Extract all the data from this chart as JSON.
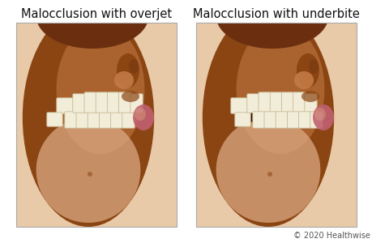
{
  "title_left": "Malocclusion with overjet",
  "title_right": "Malocclusion with underbite",
  "copyright": "© 2020 Healthwise",
  "bg_color": "#ffffff",
  "title_fontsize": 10.5,
  "copyright_fontsize": 7,
  "box_linecolor": "#aaaaaa",
  "skin_dark": "#6b2f10",
  "skin_mid": "#8B4513",
  "skin_light": "#c47a45",
  "skin_lighter": "#dba882",
  "skin_lightest": "#e8c9a8",
  "tooth_fill": "#f2edd8",
  "tooth_edge": "#c8b896",
  "gum_color": "#c87890",
  "shadow_color": "#2a0e04",
  "lip_color": "#c06070"
}
